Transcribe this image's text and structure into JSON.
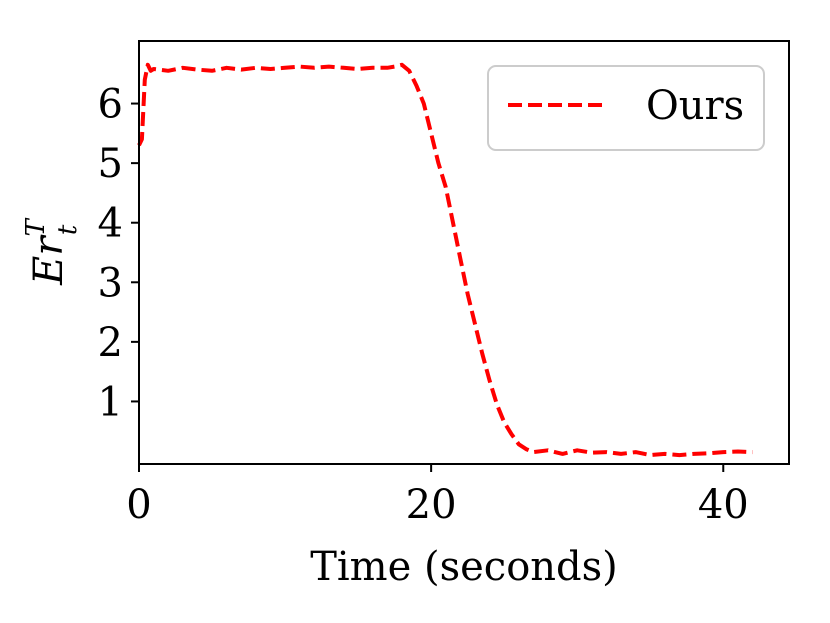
{
  "chart_data": {
    "type": "line",
    "title": "",
    "xlabel": "Time (seconds)",
    "ylabel_main": "Er",
    "ylabel_sup": "T",
    "ylabel_sub": "t",
    "xlim": [
      0,
      44.5
    ],
    "ylim": [
      -0.05,
      7.05
    ],
    "xticks": [
      0,
      20,
      40
    ],
    "xtick_labels": [
      "0",
      "20",
      "40"
    ],
    "yticks": [
      1,
      2,
      3,
      4,
      5,
      6
    ],
    "ytick_labels": [
      "1",
      "2",
      "3",
      "4",
      "5",
      "6"
    ],
    "grid": false,
    "legend_position": "top-right",
    "series": [
      {
        "name": "Ours",
        "color": "#ff0000",
        "dash": "dashed",
        "x": [
          0,
          0.2,
          0.4,
          0.6,
          0.8,
          1,
          2,
          3,
          4,
          5,
          6,
          7,
          8,
          9,
          10,
          11,
          12,
          13,
          14,
          15,
          16,
          17,
          17.5,
          18,
          18.5,
          19,
          19.5,
          20,
          20.5,
          21,
          21.5,
          22,
          22.5,
          23,
          23.5,
          24,
          24.5,
          25,
          25.5,
          26,
          26.5,
          27,
          28,
          29,
          30,
          31,
          32,
          33,
          34,
          35,
          36,
          37,
          38,
          39,
          40,
          41,
          42
        ],
        "y": [
          5.3,
          5.4,
          6.4,
          6.65,
          6.55,
          6.58,
          6.55,
          6.6,
          6.57,
          6.55,
          6.6,
          6.57,
          6.6,
          6.58,
          6.6,
          6.62,
          6.6,
          6.62,
          6.6,
          6.58,
          6.6,
          6.6,
          6.62,
          6.65,
          6.55,
          6.3,
          6.0,
          5.5,
          5.0,
          4.6,
          4.0,
          3.4,
          2.8,
          2.3,
          1.8,
          1.35,
          0.95,
          0.65,
          0.45,
          0.28,
          0.2,
          0.15,
          0.18,
          0.12,
          0.18,
          0.14,
          0.15,
          0.12,
          0.15,
          0.1,
          0.12,
          0.1,
          0.12,
          0.13,
          0.15,
          0.16,
          0.15
        ]
      }
    ]
  }
}
